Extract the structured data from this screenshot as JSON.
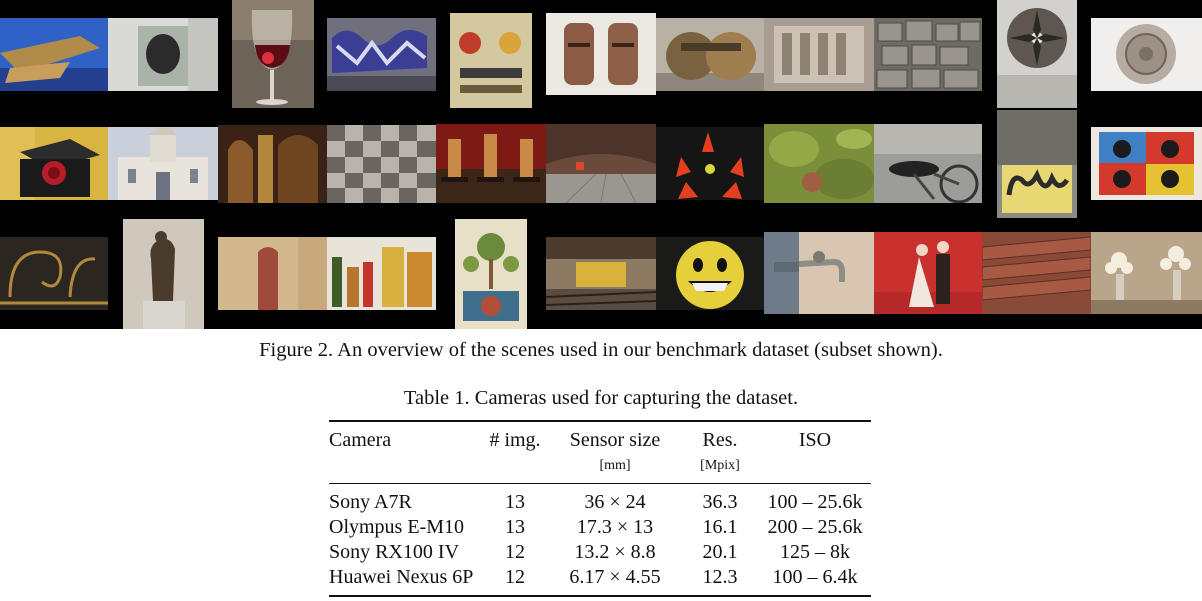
{
  "figure": {
    "caption": "Figure 2. An overview of the scenes used in our benchmark dataset (subset shown).",
    "thumbnails": [
      "blue-fabric-wood-icon",
      "bronze-relief-plaque-icon",
      "wine-glass-icon",
      "graffiti-wall-icon",
      "painted-panel-icon",
      "mailboxes-icon",
      "brass-sculpture-icon",
      "stone-relief-icon",
      "stone-blocks-icon",
      "fountain-icon",
      "ornate-disc-icon",
      "rose-in-box-icon",
      "church-facade-icon",
      "baroque-altar-icon",
      "checkered-wall-icon",
      "candles-icon",
      "brick-room-icon",
      "traffic-cones-icon",
      "mossy-rock-icon",
      "bicycle-icon",
      "graffiti-2015-icon",
      "pop-art-portraits-icon",
      "iron-grille-icon",
      "statue-icon",
      "brick-doorway-icon",
      "bottles-icon",
      "tiled-tree-mural-icon",
      "tram-station-icon",
      "smiley-pillow-icon",
      "water-tap-icon",
      "wedding-couple-icon",
      "roof-tiles-icon",
      "flower-vases-icon"
    ]
  },
  "table": {
    "caption": "Table 1. Cameras used for capturing the dataset.",
    "headers": {
      "camera": "Camera",
      "img": "# img.",
      "sensor": "Sensor size",
      "res": "Res.",
      "iso": "ISO"
    },
    "units": {
      "sensor": "[mm]",
      "res": "[Mpix]"
    },
    "rows": [
      {
        "camera": "Sony A7R",
        "img": "13",
        "sensor": "36 × 24",
        "res": "36.3",
        "iso": "100 – 25.6k"
      },
      {
        "camera": "Olympus E-M10",
        "img": "13",
        "sensor": "17.3 × 13",
        "res": "16.1",
        "iso": "200 – 25.6k"
      },
      {
        "camera": "Sony RX100 IV",
        "img": "12",
        "sensor": "13.2 × 8.8",
        "res": "20.1",
        "iso": "125 – 8k"
      },
      {
        "camera": "Huawei Nexus 6P",
        "img": "12",
        "sensor": "6.17 × 4.55",
        "res": "12.3",
        "iso": "100 – 6.4k"
      }
    ]
  }
}
